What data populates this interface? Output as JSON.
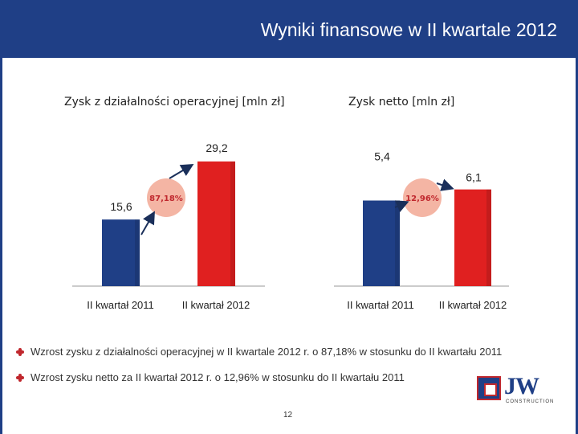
{
  "header": {
    "title": "Wyniki finansowe w II kwartale 2012"
  },
  "chart_data": [
    {
      "type": "bar",
      "title": "Zysk z działalności operacyjnej [mln zł]",
      "categories": [
        "II kwartał 2011",
        "II kwartał 2012"
      ],
      "values": [
        15.6,
        29.2
      ],
      "value_labels": [
        "15,6",
        "29,2"
      ],
      "bar_colors": [
        "#1f3f86",
        "#e02020"
      ],
      "change_label": "87,18%",
      "ylim": [
        0,
        32
      ]
    },
    {
      "type": "bar",
      "title": "Zysk netto [mln zł]",
      "categories": [
        "II kwartał 2011",
        "II kwartał 2012"
      ],
      "values": [
        5.4,
        6.1
      ],
      "value_labels": [
        "5,4",
        "6,1"
      ],
      "bar_colors": [
        "#1f3f86",
        "#e02020"
      ],
      "change_label": "12,96%",
      "ylim": [
        0,
        7.2
      ]
    }
  ],
  "bullets": [
    "Wzrost zysku z działalności operacyjnej w II kwartale 2012 r. o 87,18% w stosunku do II kwartału 2011",
    "Wzrost zysku netto za II kwartał 2012 r. o 12,96% w stosunku do II kwartału 2011"
  ],
  "page_number": "12",
  "logo": {
    "text": "JW",
    "subtext": "CONSTRUCTION"
  },
  "colors": {
    "header": "#1f3f86",
    "accent": "#c0272d",
    "badge": "#f4b5a4"
  }
}
